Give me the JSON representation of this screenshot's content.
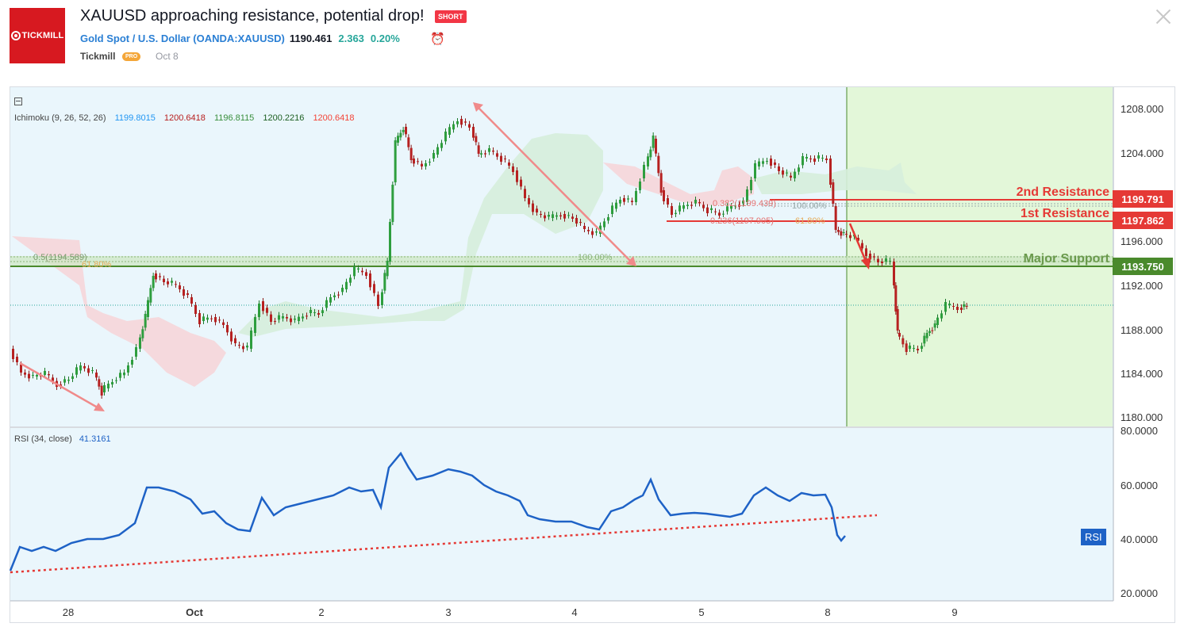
{
  "header": {
    "logo_text": "TICKMILL",
    "title": "XAUUSD approaching resistance, potential drop!",
    "badge": "SHORT",
    "symbol_name": "Gold Spot / U.S. Dollar",
    "symbol_code": "OANDA:XAUUSD",
    "last_price": "1190.461",
    "change": "2.363",
    "change_pct": "0.20%",
    "author": "Tickmill",
    "author_badge": "PRO",
    "date": "Oct 8",
    "colors": {
      "brand": "#d71920",
      "up": "#26a69a",
      "link": "#2a7fd4",
      "short": "#f23645"
    }
  },
  "chart_data": [
    {
      "type": "candlestick",
      "indicator_legend": {
        "name": "Ichimoku (9, 26, 52, 26)",
        "values": [
          "1199.8015",
          "1200.6418",
          "1196.8115",
          "1200.2216",
          "1200.6418"
        ],
        "value_colors": [
          "#2196f3",
          "#b71c1c",
          "#388e3c",
          "#1b5e20",
          "#f44336"
        ]
      },
      "y_ticks": [
        "1208.000",
        "1204.000",
        "1196.000",
        "1192.000",
        "1188.000",
        "1184.000",
        "1180.000"
      ],
      "x_ticks": [
        "28",
        "Oct",
        "2",
        "3",
        "4",
        "5",
        "8",
        "9"
      ],
      "ylim": [
        1180,
        1208
      ],
      "levels": [
        {
          "label": "2nd Resistance",
          "value": "1199.791",
          "color": "#e53935"
        },
        {
          "label": "1st Resistance",
          "value": "1197.862",
          "color": "#e53935"
        },
        {
          "label": "Major Support",
          "value": "1193.750",
          "color": "#4a8a2c"
        }
      ],
      "fib_labels": [
        "0.382(1199.439)",
        "100.00%",
        "0.236(1197.905)",
        "61.80%",
        "0.5(1194.589)",
        "61.80%",
        "100.00%"
      ],
      "current_price_line": 1190.461
    },
    {
      "type": "line",
      "legend": "RSI (34, close)",
      "legend_value": "41.3161",
      "y_ticks": [
        "80.0000",
        "60.0000",
        "40.0000",
        "20.0000"
      ],
      "ylim": [
        20,
        80
      ],
      "tag": "RSI",
      "line_color": "#1e62c6",
      "trendline_color": "#e53935"
    }
  ]
}
